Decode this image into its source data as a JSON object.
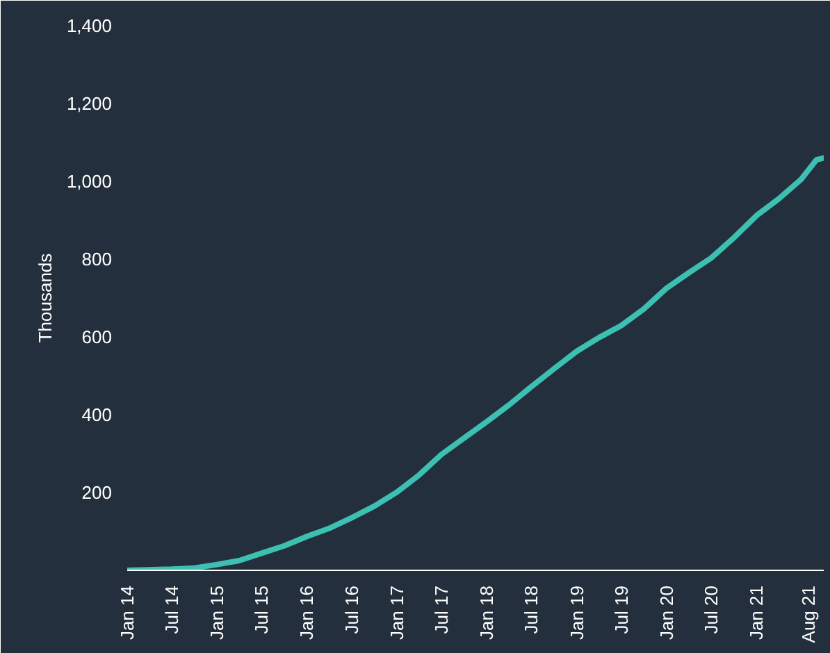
{
  "chart_data": {
    "type": "line",
    "ylabel": "Thousands",
    "x": [
      "2014-01",
      "2014-07",
      "2014-10",
      "2015-01",
      "2015-04",
      "2015-07",
      "2015-10",
      "2016-01",
      "2016-04",
      "2016-07",
      "2016-10",
      "2017-01",
      "2017-04",
      "2017-07",
      "2017-10",
      "2018-01",
      "2018-04",
      "2018-07",
      "2018-10",
      "2019-01",
      "2019-04",
      "2019-07",
      "2019-10",
      "2020-01",
      "2020-04",
      "2020-07",
      "2020-10",
      "2021-01",
      "2021-04",
      "2021-07",
      "2021-09",
      "2021-10"
    ],
    "series": [
      {
        "color": "#3dbfb2",
        "values": [
          0,
          3,
          6,
          15,
          25,
          44,
          63,
          87,
          108,
          135,
          165,
          201,
          245,
          298,
          340,
          382,
          425,
          472,
          518,
          563,
          598,
          629,
          672,
          725,
          765,
          803,
          855,
          912,
          955,
          1005,
          1055,
          1060
        ]
      }
    ],
    "xlim": [
      "2014-01",
      "2021-10"
    ],
    "xticks": [
      {
        "value": "2014-01",
        "label": "Jan 14"
      },
      {
        "value": "2014-07",
        "label": "Jul 14"
      },
      {
        "value": "2015-01",
        "label": "Jan 15"
      },
      {
        "value": "2015-07",
        "label": "Jul 15"
      },
      {
        "value": "2016-01",
        "label": "Jan 16"
      },
      {
        "value": "2016-07",
        "label": "Jul 16"
      },
      {
        "value": "2017-01",
        "label": "Jan 17"
      },
      {
        "value": "2017-07",
        "label": "Jul 17"
      },
      {
        "value": "2018-01",
        "label": "Jan 18"
      },
      {
        "value": "2018-07",
        "label": "Jul 18"
      },
      {
        "value": "2019-01",
        "label": "Jan 19"
      },
      {
        "value": "2019-07",
        "label": "Jul 19"
      },
      {
        "value": "2020-01",
        "label": "Jan 20"
      },
      {
        "value": "2020-07",
        "label": "Jul 20"
      },
      {
        "value": "2021-01",
        "label": "Jan 21"
      },
      {
        "value": "2021-08",
        "label": "Aug 21"
      }
    ],
    "ylim": [
      0,
      1400
    ],
    "yticks": [
      {
        "value": 200,
        "label": "200"
      },
      {
        "value": 400,
        "label": "400"
      },
      {
        "value": 600,
        "label": "600"
      },
      {
        "value": 800,
        "label": "800"
      },
      {
        "value": 1000,
        "label": "1,000"
      },
      {
        "value": 1200,
        "label": "1,200"
      },
      {
        "value": 1400,
        "label": "1,400"
      }
    ],
    "marker": "none",
    "line_style": "solid"
  }
}
